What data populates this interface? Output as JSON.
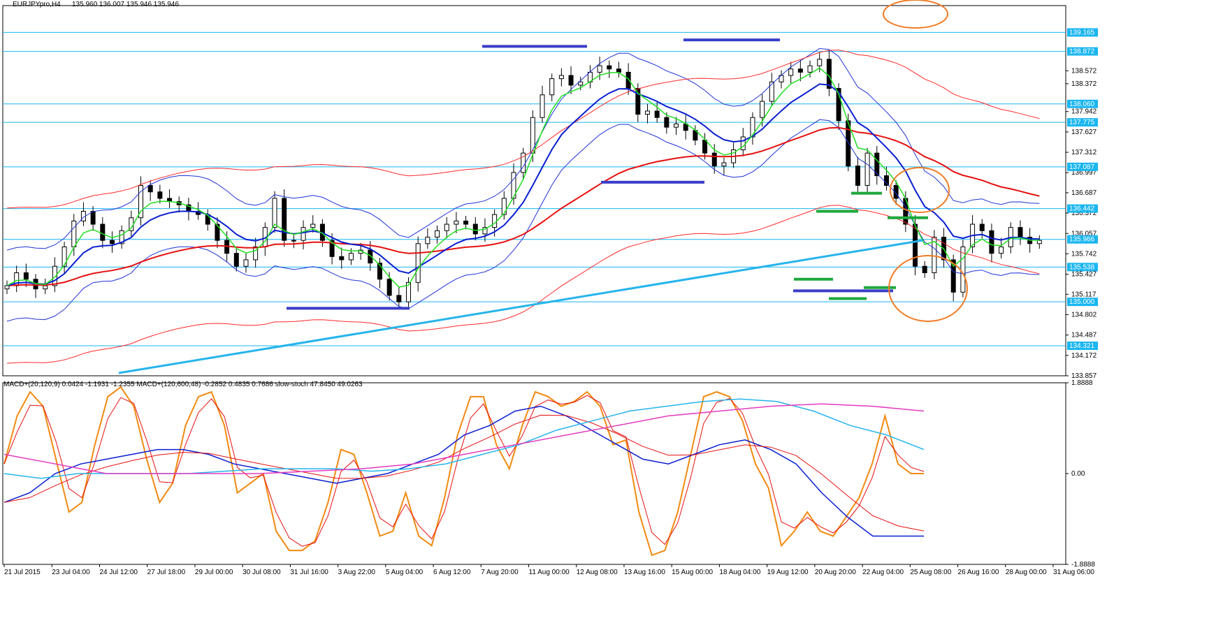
{
  "header": {
    "symbol": "EURJPYpro,H4",
    "ohlc": "135.960 136.007 135.946 135.946",
    "indicators": "MACD+(20,120,9) 0.0424 -1.1931 -1.2355  MACD+(120,600,48) -0.2852 0.4835 0.7686  slow-stoch 47.8450 49.0263"
  },
  "colors": {
    "bull": "#ffffff",
    "bear": "#000000",
    "bb": "#1f33d6",
    "env": "#ff2a2a",
    "ema_fast": "#1fe01f",
    "ema_slow": "#0a1fd0",
    "sma_long": "#e61010",
    "trend": "#26b4ec",
    "hline": "#19b6f0",
    "marker_blue": "#3a3ec8",
    "marker_green": "#1ea83c",
    "ellipse": "#f07c26",
    "stoch_main": "#f28a10",
    "stoch_signal": "#e61010",
    "macd_fast": "#0a1fd0",
    "macd_fast_signal": "#e61010",
    "macd_slow": "#26b4ec",
    "macd_slow_signal": "#e33bc0"
  },
  "chart_data": [
    {
      "type": "candlestick",
      "ylim": [
        133.857,
        139.58
      ],
      "y_ticks": [
        "138.572",
        "138.372",
        "137.942",
        "137.627",
        "137.312",
        "136.997",
        "136.687",
        "136.372",
        "136.057",
        "135.742",
        "135.427",
        "135.117",
        "134.802",
        "134.487",
        "134.172",
        "133.857"
      ],
      "price_levels": [
        "139.165",
        "138.872",
        "138.060",
        "137.775",
        "137.087",
        "136.442",
        "135.966",
        "135.538",
        "135.000",
        "134.321"
      ],
      "x_labels": [
        "21 Jul 2015",
        "23 Jul 04:00",
        "24 Jul 12:00",
        "27 Jul 18:00",
        "29 Jul 00:00",
        "30 Jul 08:00",
        "31 Jul 16:00",
        "3 Aug 22:00",
        "5 Aug 04:00",
        "6 Aug 12:00",
        "7 Aug 20:00",
        "11 Aug 00:00",
        "12 Aug 08:00",
        "13 Aug 16:00",
        "15 Aug 00:00",
        "18 Aug 04:00",
        "19 Aug 12:00",
        "20 Aug 20:00",
        "22 Aug 04:00",
        "25 Aug 08:00",
        "26 Aug 16:00",
        "28 Aug 00:00",
        "31 Aug 06:00"
      ],
      "close_path": [
        135.25,
        135.45,
        135.35,
        135.2,
        135.25,
        135.55,
        135.85,
        136.25,
        136.4,
        136.2,
        135.95,
        135.9,
        136.1,
        136.3,
        136.8,
        136.7,
        136.6,
        136.55,
        136.5,
        136.4,
        136.35,
        136.2,
        135.95,
        135.75,
        135.55,
        135.65,
        135.85,
        136.15,
        136.6,
        135.95,
        135.95,
        136.15,
        136.2,
        135.95,
        135.7,
        135.65,
        135.75,
        135.8,
        135.6,
        135.35,
        135.1,
        135.0,
        135.3,
        135.9,
        136.0,
        136.1,
        136.2,
        136.25,
        136.2,
        136.05,
        136.15,
        136.35,
        136.6,
        137.0,
        137.3,
        137.85,
        138.2,
        138.45,
        138.5,
        138.35,
        138.4,
        138.55,
        138.65,
        138.6,
        138.55,
        138.3,
        137.9,
        137.95,
        137.85,
        137.7,
        137.75,
        137.65,
        137.5,
        137.3,
        137.1,
        137.15,
        137.35,
        137.55,
        137.85,
        138.1,
        138.4,
        138.5,
        138.6,
        138.55,
        138.65,
        138.75,
        138.3,
        137.8,
        137.1,
        136.8,
        137.3,
        136.95,
        136.8,
        136.6,
        136.2,
        135.55,
        135.45,
        136.0,
        135.65,
        135.15,
        135.85,
        136.2,
        136.1,
        135.75,
        135.85,
        136.15,
        136.0,
        135.9,
        135.95
      ],
      "y_tick_labels_right": "price axis"
    },
    {
      "type": "line",
      "ylim": [
        -1.8888,
        1.8888
      ],
      "y_ticks": [
        "1.8888",
        "0.00",
        "-1.8888"
      ],
      "series": [
        {
          "key": "stoch_main",
          "values": [
            0.2,
            1.2,
            1.7,
            1.4,
            0.3,
            -0.8,
            -0.6,
            0.6,
            1.6,
            1.8,
            1.4,
            0.3,
            -0.6,
            -0.2,
            1.0,
            1.6,
            1.7,
            1.0,
            -0.4,
            -0.2,
            0.0,
            -1.2,
            -1.6,
            -1.6,
            -1.4,
            -0.6,
            0.5,
            0.4,
            -0.4,
            -1.3,
            -1.2,
            -0.4,
            -1.3,
            -1.5,
            -0.5,
            0.8,
            1.6,
            1.6,
            0.6,
            0.1,
            1.0,
            1.7,
            1.6,
            1.4,
            1.5,
            1.7,
            1.4,
            0.6,
            0.7,
            -0.8,
            -1.7,
            -1.6,
            -0.8,
            0.4,
            1.6,
            1.7,
            1.6,
            1.1,
            0.2,
            -0.3,
            -1.5,
            -1.2,
            -0.8,
            -1.2,
            -1.3,
            -0.9,
            -0.5,
            0.2,
            1.2,
            0.2,
            0.0,
            0.0
          ]
        },
        {
          "key": "macd_fast",
          "values": [
            -0.6,
            -0.4,
            0.0,
            0.2,
            0.3,
            0.4,
            0.5,
            0.5,
            0.4,
            0.2,
            0.1,
            0.0,
            -0.1,
            -0.2,
            -0.1,
            0.0,
            0.2,
            0.4,
            0.8,
            1.0,
            1.3,
            1.4,
            1.2,
            0.9,
            0.6,
            0.3,
            0.2,
            0.4,
            0.6,
            0.7,
            0.5,
            0.2,
            -0.4,
            -0.9,
            -1.3,
            -1.3,
            -1.3
          ]
        },
        {
          "key": "macd_slow",
          "values": [
            0.0,
            -0.1,
            0.0,
            0.0,
            0.0,
            0.0,
            0.05,
            0.1,
            0.1,
            0.1,
            0.05,
            0.1,
            0.2,
            0.4,
            0.6,
            0.9,
            1.1,
            1.3,
            1.4,
            1.5,
            1.55,
            1.5,
            1.3,
            1.0,
            0.8,
            0.5
          ]
        },
        {
          "key": "macd_slow_signal",
          "values": [
            0.4,
            0.2,
            0.0,
            0.0,
            0.0,
            0.0,
            0.05,
            0.1,
            0.2,
            0.4,
            0.6,
            0.8,
            1.0,
            1.2,
            1.3,
            1.4,
            1.45,
            1.4,
            1.3
          ]
        }
      ]
    }
  ]
}
